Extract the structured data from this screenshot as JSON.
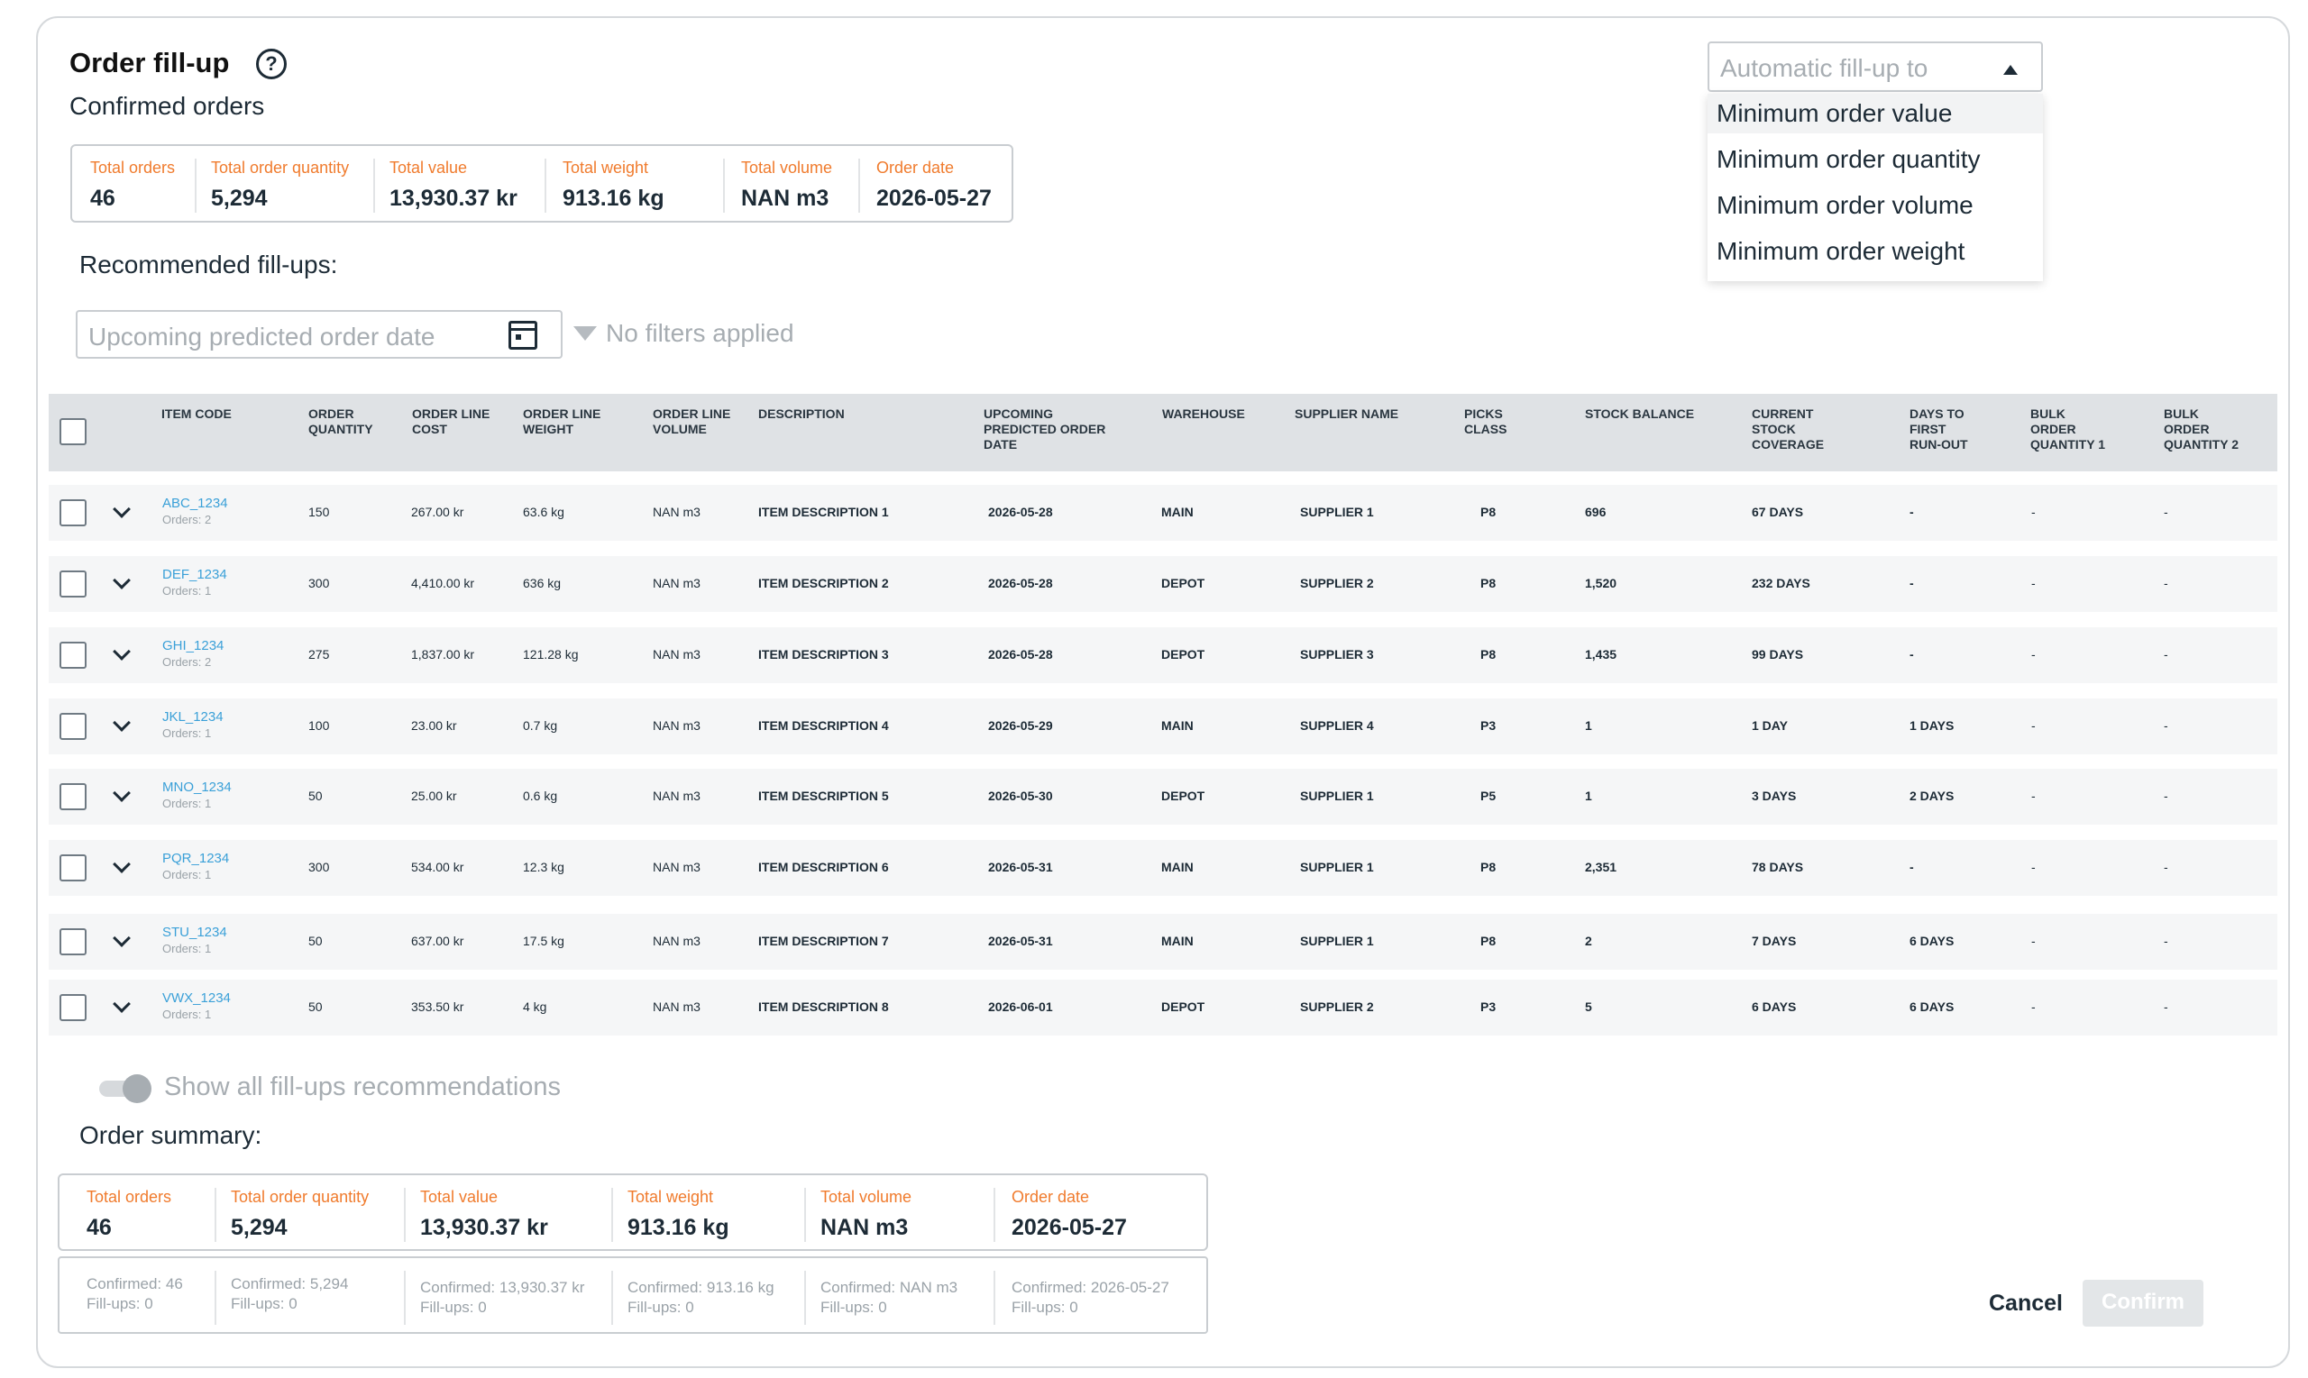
{
  "header": {
    "title": "Order fill-up",
    "help_icon": "question-circle-icon",
    "subtitle": "Confirmed orders"
  },
  "confirmed_stats": [
    {
      "label": "Total orders",
      "value": "46"
    },
    {
      "label": "Total order quantity",
      "value": "5,294"
    },
    {
      "label": "Total value",
      "value": "13,930.37  kr"
    },
    {
      "label": "Total weight",
      "value": "913.16 kg"
    },
    {
      "label": "Total volume",
      "value": "NAN m3"
    },
    {
      "label": "Order date",
      "value": "2026-05-27"
    }
  ],
  "recommended_label": "Recommended fill-ups:",
  "date_filter": {
    "placeholder": "Upcoming predicted order date",
    "icon": "calendar-icon"
  },
  "filters": {
    "text": "No filters applied",
    "icon": "filter-icon"
  },
  "autofill": {
    "placeholder": "Automatic fill-up to",
    "icon": "caret-up-icon",
    "options": [
      "Minimum order value",
      "Minimum order quantity",
      "Minimum order volume",
      "Minimum order weight"
    ]
  },
  "table": {
    "columns": [
      "Item code",
      "Order quantity",
      "Order line cost",
      "Order line weight",
      "Order line volume",
      "Description",
      "Upcoming predicted order date",
      "Warehouse",
      "Supplier name",
      "Picks class",
      "Stock balance",
      "Current stock coverage",
      "Days to first run-out",
      "Bulk order quantity 1",
      "Bulk order quantity 2"
    ],
    "columns_display": [
      "ITEM CODE",
      "ORDER\nQUANTITY",
      "ORDER LINE\nCOST",
      "ORDER LINE\nWEIGHT",
      "ORDER LINE\nVOLUME",
      "DESCRIPTION",
      "UPCOMING\nPREDICTED ORDER\nDATE",
      "WAREHOUSE",
      "SUPPLIER NAME",
      "PICKS\nCLASS",
      "STOCK BALANCE",
      "CURRENT\nSTOCK\nCOVERAGE",
      "DAYS TO\nFIRST\nRUN-OUT",
      "BULK\nORDER\nQUANTITY 1",
      "BULK\nORDER\nQUANTITY 2"
    ],
    "rows": [
      {
        "code": "ABC_1234",
        "orders": "Orders: 2",
        "qty": "150",
        "cost": "267.00 kr",
        "weight": "63.6 kg",
        "volume": "NAN m3",
        "desc": "ITEM DESCRIPTION 1",
        "date": "2026-05-28",
        "warehouse": "MAIN",
        "supplier": "SUPPLIER 1",
        "picks": "P8",
        "stock": "696",
        "coverage": "67 DAYS",
        "runout": "-",
        "bulk1": "-",
        "bulk2": "-"
      },
      {
        "code": "DEF_1234",
        "orders": "Orders: 1",
        "qty": "300",
        "cost": "4,410.00 kr",
        "weight": "636 kg",
        "volume": "NAN m3",
        "desc": "ITEM DESCRIPTION 2",
        "date": "2026-05-28",
        "warehouse": "DEPOT",
        "supplier": "SUPPLIER 2",
        "picks": "P8",
        "stock": "1,520",
        "coverage": "232 DAYS",
        "runout": "-",
        "bulk1": "-",
        "bulk2": "-"
      },
      {
        "code": "GHI_1234",
        "orders": "Orders: 2",
        "qty": "275",
        "cost": "1,837.00 kr",
        "weight": "121.28 kg",
        "volume": "NAN m3",
        "desc": "ITEM DESCRIPTION 3",
        "date": "2026-05-28",
        "warehouse": "DEPOT",
        "supplier": "SUPPLIER 3",
        "picks": "P8",
        "stock": "1,435",
        "coverage": "99 DAYS",
        "runout": "-",
        "bulk1": "-",
        "bulk2": "-"
      },
      {
        "code": "JKL_1234",
        "orders": "Orders: 1",
        "qty": "100",
        "cost": "23.00 kr",
        "weight": "0.7 kg",
        "volume": "NAN m3",
        "desc": "ITEM DESCRIPTION 4",
        "date": "2026-05-29",
        "warehouse": "MAIN",
        "supplier": "SUPPLIER 4",
        "picks": "P3",
        "stock": "1",
        "coverage": "1 DAY",
        "runout": "1 DAYS",
        "bulk1": "-",
        "bulk2": "-"
      },
      {
        "code": "MNO_1234",
        "orders": "Orders: 1",
        "qty": "50",
        "cost": "25.00 kr",
        "weight": "0.6 kg",
        "volume": "NAN m3",
        "desc": "ITEM DESCRIPTION 5",
        "date": "2026-05-30",
        "warehouse": "DEPOT",
        "supplier": "SUPPLIER 1",
        "picks": "P5",
        "stock": "1",
        "coverage": "3 DAYS",
        "runout": "2 DAYS",
        "bulk1": "-",
        "bulk2": "-"
      },
      {
        "code": "PQR_1234",
        "orders": "Orders: 1",
        "qty": "300",
        "cost": "534.00 kr",
        "weight": "12.3 kg",
        "volume": "NAN m3",
        "desc": "ITEM DESCRIPTION 6",
        "date": "2026-05-31",
        "warehouse": "MAIN",
        "supplier": "SUPPLIER 1",
        "picks": "P8",
        "stock": "2,351",
        "coverage": "78 DAYS",
        "runout": "-",
        "bulk1": "-",
        "bulk2": "-"
      },
      {
        "code": "STU_1234",
        "orders": "Orders: 1",
        "qty": "50",
        "cost": "637.00 kr",
        "weight": "17.5 kg",
        "volume": "NAN m3",
        "desc": "ITEM DESCRIPTION 7",
        "date": "2026-05-31",
        "warehouse": "MAIN",
        "supplier": "SUPPLIER 1",
        "picks": "P8",
        "stock": "2",
        "coverage": "7 DAYS",
        "runout": "6 DAYS",
        "bulk1": "-",
        "bulk2": "-"
      },
      {
        "code": "VWX_1234",
        "orders": "Orders: 1",
        "qty": "50",
        "cost": "353.50 kr",
        "weight": "4 kg",
        "volume": "NAN m3",
        "desc": "ITEM DESCRIPTION 8",
        "date": "2026-06-01",
        "warehouse": "DEPOT",
        "supplier": "SUPPLIER 2",
        "picks": "P3",
        "stock": "5",
        "coverage": "6 DAYS",
        "runout": "6 DAYS",
        "bulk1": "-",
        "bulk2": "-"
      }
    ]
  },
  "toggle": {
    "label": "Show all fill-ups recommendations",
    "on": true
  },
  "summary": {
    "label": "Order summary:",
    "stats": [
      {
        "label": "Total orders",
        "value": "46",
        "confirmed": "Confirmed: 46",
        "fillups": "Fill-ups: 0"
      },
      {
        "label": "Total order quantity",
        "value": "5,294",
        "confirmed": "Confirmed: 5,294",
        "fillups": "Fill-ups: 0"
      },
      {
        "label": "Total value",
        "value": "13,930.37  kr",
        "confirmed": "Confirmed: 13,930.37 kr",
        "fillups": "Fill-ups: 0"
      },
      {
        "label": "Total weight",
        "value": "913.16 kg",
        "confirmed": "Confirmed: 913.16 kg",
        "fillups": "Fill-ups: 0"
      },
      {
        "label": "Total volume",
        "value": "NAN m3",
        "confirmed": "Confirmed: NAN m3",
        "fillups": "Fill-ups: 0"
      },
      {
        "label": "Order date",
        "value": "2026-05-27",
        "confirmed": "Confirmed: 2026-05-27",
        "fillups": "Fill-ups: 0"
      }
    ]
  },
  "actions": {
    "cancel": "Cancel",
    "confirm": "Confirm"
  },
  "colors": {
    "accent_orange": "#f07b2d",
    "link_blue": "#3aa0d8",
    "text_dark": "#1d2b36",
    "muted": "#a7adb2"
  }
}
